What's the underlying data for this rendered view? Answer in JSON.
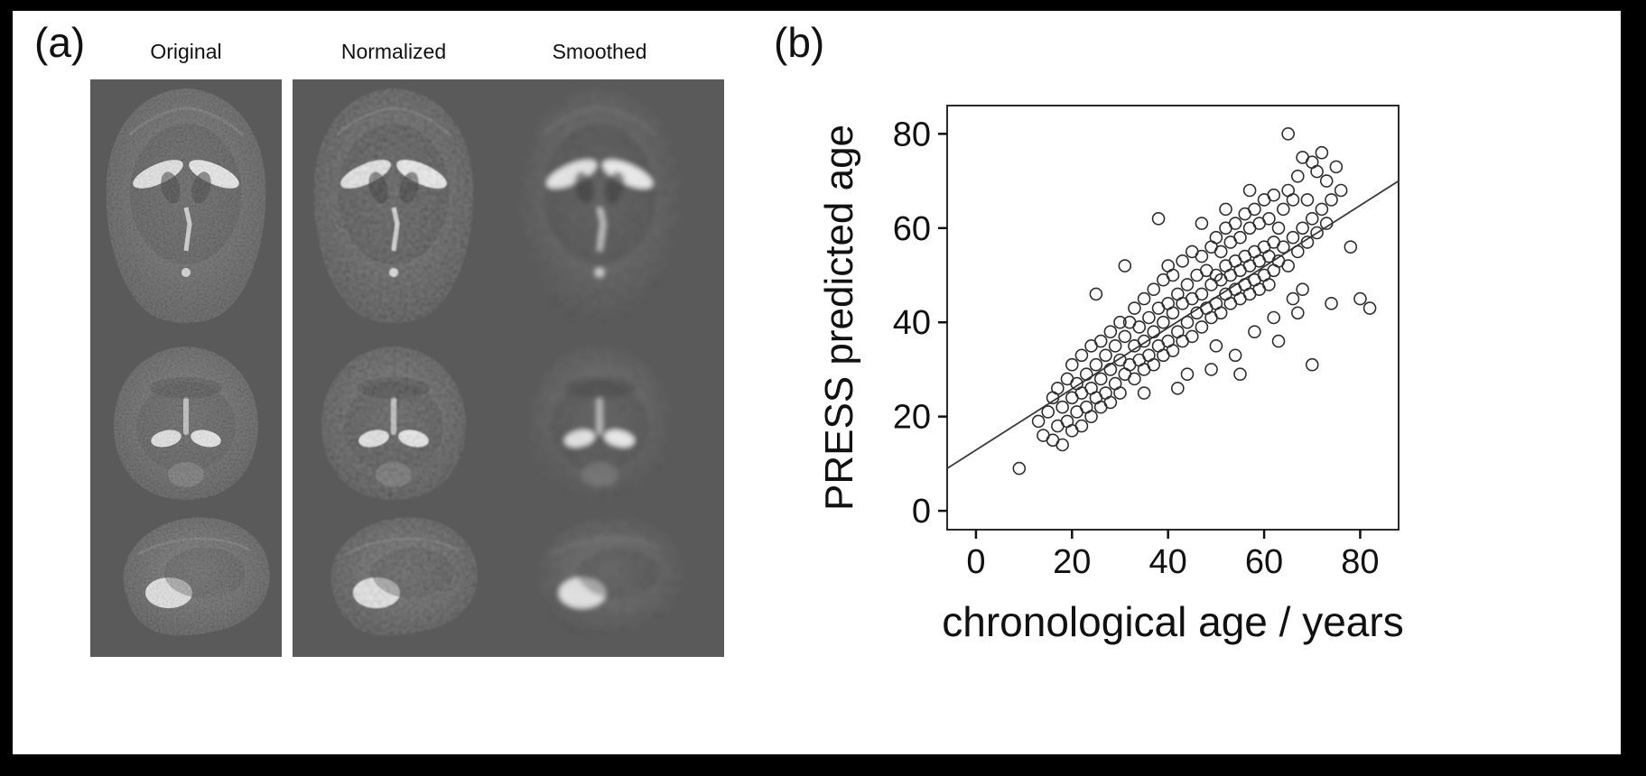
{
  "panel_a": {
    "label": "(a)",
    "columns": [
      "Original",
      "Normalized",
      "Smoothed"
    ],
    "mri_views": [
      "axial-slice",
      "coronal-slice",
      "sagittal-slice"
    ],
    "background_color": "#5a5a5a"
  },
  "panel_b": {
    "label": "(b)"
  },
  "chart_data": {
    "type": "scatter",
    "title": "",
    "xlabel": "chronological age / years",
    "ylabel": "PRESS predicted age",
    "xlim": [
      -6,
      88
    ],
    "ylim": [
      -4,
      86
    ],
    "xticks": [
      0,
      20,
      40,
      60,
      80
    ],
    "yticks": [
      0,
      20,
      40,
      60,
      80
    ],
    "grid": false,
    "legend": false,
    "marker": "open-circle",
    "marker_color": "#2f2f2f",
    "regression_line": {
      "x1": -6,
      "y1": 9,
      "x2": 88,
      "y2": 70,
      "color": "#3a3a3a"
    },
    "points": [
      [
        9,
        9
      ],
      [
        13,
        19
      ],
      [
        14,
        16
      ],
      [
        15,
        21
      ],
      [
        16,
        15
      ],
      [
        16,
        24
      ],
      [
        17,
        18
      ],
      [
        17,
        26
      ],
      [
        18,
        14
      ],
      [
        18,
        22
      ],
      [
        19,
        19
      ],
      [
        19,
        28
      ],
      [
        20,
        17
      ],
      [
        20,
        24
      ],
      [
        20,
        31
      ],
      [
        21,
        21
      ],
      [
        21,
        27
      ],
      [
        22,
        18
      ],
      [
        22,
        25
      ],
      [
        22,
        33
      ],
      [
        23,
        22
      ],
      [
        23,
        29
      ],
      [
        24,
        20
      ],
      [
        24,
        26
      ],
      [
        24,
        35
      ],
      [
        25,
        24
      ],
      [
        25,
        31
      ],
      [
        25,
        46
      ],
      [
        26,
        22
      ],
      [
        26,
        28
      ],
      [
        26,
        36
      ],
      [
        27,
        25
      ],
      [
        27,
        33
      ],
      [
        28,
        23
      ],
      [
        28,
        30
      ],
      [
        28,
        38
      ],
      [
        29,
        27
      ],
      [
        29,
        35
      ],
      [
        30,
        25
      ],
      [
        30,
        32
      ],
      [
        30,
        40
      ],
      [
        31,
        52
      ],
      [
        31,
        29
      ],
      [
        31,
        37
      ],
      [
        32,
        31
      ],
      [
        32,
        40
      ],
      [
        33,
        28
      ],
      [
        33,
        35
      ],
      [
        33,
        43
      ],
      [
        34,
        32
      ],
      [
        34,
        39
      ],
      [
        35,
        25
      ],
      [
        35,
        30
      ],
      [
        35,
        36
      ],
      [
        35,
        45
      ],
      [
        36,
        33
      ],
      [
        36,
        41
      ],
      [
        37,
        31
      ],
      [
        37,
        38
      ],
      [
        37,
        47
      ],
      [
        38,
        35
      ],
      [
        38,
        43
      ],
      [
        38,
        62
      ],
      [
        39,
        33
      ],
      [
        39,
        40
      ],
      [
        39,
        49
      ],
      [
        40,
        36
      ],
      [
        40,
        44
      ],
      [
        40,
        52
      ],
      [
        41,
        34
      ],
      [
        41,
        42
      ],
      [
        41,
        50
      ],
      [
        42,
        26
      ],
      [
        42,
        38
      ],
      [
        42,
        46
      ],
      [
        43,
        36
      ],
      [
        43,
        44
      ],
      [
        43,
        53
      ],
      [
        44,
        29
      ],
      [
        44,
        40
      ],
      [
        44,
        48
      ],
      [
        45,
        37
      ],
      [
        45,
        45
      ],
      [
        45,
        55
      ],
      [
        46,
        42
      ],
      [
        46,
        50
      ],
      [
        47,
        39
      ],
      [
        47,
        46
      ],
      [
        47,
        54
      ],
      [
        47,
        61
      ],
      [
        48,
        43
      ],
      [
        48,
        51
      ],
      [
        49,
        30
      ],
      [
        49,
        41
      ],
      [
        49,
        48
      ],
      [
        49,
        56
      ],
      [
        50,
        35
      ],
      [
        50,
        44
      ],
      [
        50,
        50
      ],
      [
        50,
        58
      ],
      [
        51,
        42
      ],
      [
        51,
        49
      ],
      [
        51,
        55
      ],
      [
        52,
        46
      ],
      [
        52,
        52
      ],
      [
        52,
        60
      ],
      [
        52,
        64
      ],
      [
        53,
        44
      ],
      [
        53,
        50
      ],
      [
        53,
        57
      ],
      [
        54,
        33
      ],
      [
        54,
        47
      ],
      [
        54,
        53
      ],
      [
        54,
        61
      ],
      [
        55,
        29
      ],
      [
        55,
        45
      ],
      [
        55,
        51
      ],
      [
        55,
        58
      ],
      [
        56,
        48
      ],
      [
        56,
        54
      ],
      [
        56,
        63
      ],
      [
        57,
        46
      ],
      [
        57,
        52
      ],
      [
        57,
        60
      ],
      [
        57,
        68
      ],
      [
        58,
        38
      ],
      [
        58,
        49
      ],
      [
        58,
        55
      ],
      [
        58,
        64
      ],
      [
        59,
        47
      ],
      [
        59,
        53
      ],
      [
        59,
        61
      ],
      [
        60,
        50
      ],
      [
        60,
        56
      ],
      [
        60,
        66
      ],
      [
        61,
        48
      ],
      [
        61,
        54
      ],
      [
        61,
        62
      ],
      [
        62,
        41
      ],
      [
        62,
        51
      ],
      [
        62,
        57
      ],
      [
        62,
        67
      ],
      [
        63,
        36
      ],
      [
        63,
        53
      ],
      [
        63,
        60
      ],
      [
        64,
        56
      ],
      [
        64,
        64
      ],
      [
        65,
        52
      ],
      [
        65,
        68
      ],
      [
        65,
        80
      ],
      [
        66,
        45
      ],
      [
        66,
        58
      ],
      [
        66,
        66
      ],
      [
        67,
        42
      ],
      [
        67,
        55
      ],
      [
        67,
        71
      ],
      [
        68,
        47
      ],
      [
        68,
        60
      ],
      [
        68,
        75
      ],
      [
        69,
        57
      ],
      [
        69,
        66
      ],
      [
        70,
        31
      ],
      [
        70,
        62
      ],
      [
        70,
        74
      ],
      [
        71,
        59
      ],
      [
        71,
        72
      ],
      [
        72,
        64
      ],
      [
        72,
        76
      ],
      [
        73,
        61
      ],
      [
        73,
        70
      ],
      [
        74,
        44
      ],
      [
        74,
        66
      ],
      [
        75,
        73
      ],
      [
        76,
        68
      ],
      [
        78,
        56
      ],
      [
        80,
        45
      ],
      [
        82,
        43
      ]
    ]
  }
}
